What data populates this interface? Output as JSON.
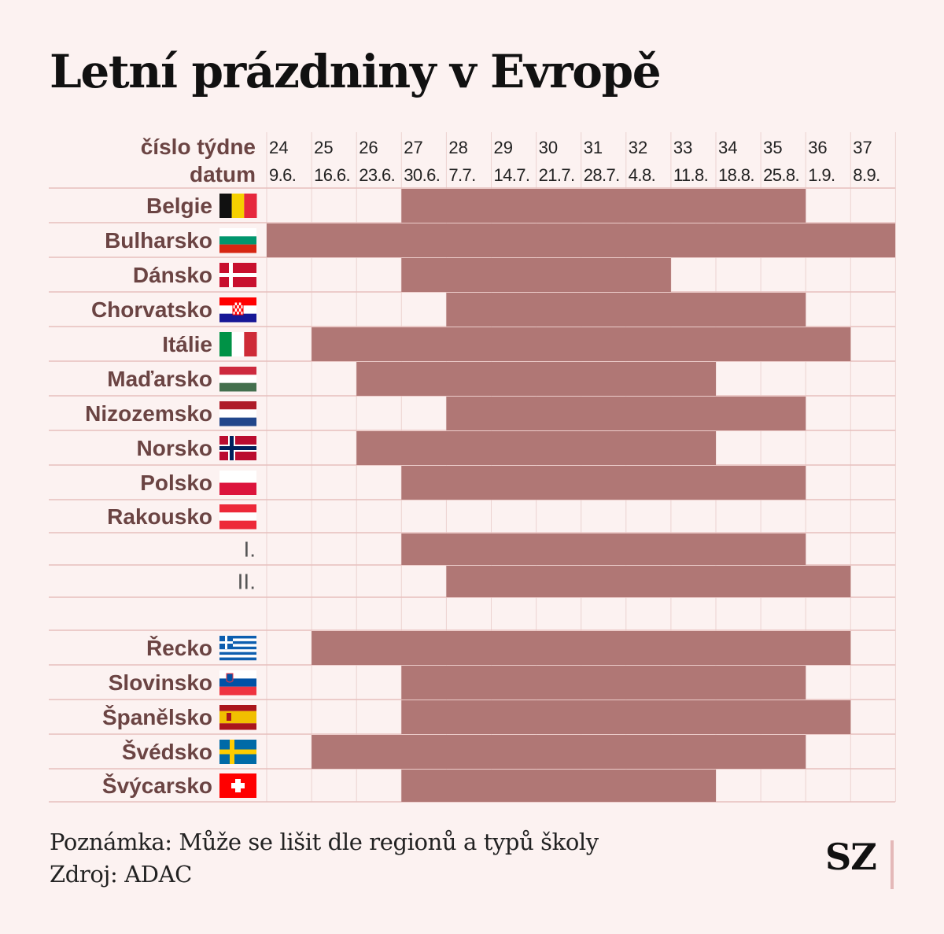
{
  "title": "Letní prázdniny v Evropě",
  "colors": {
    "background": "#fcf2f1",
    "bar": "#b07775",
    "label": "#6b4443",
    "grid": "#ecd3d1",
    "row_line": "#e7c0be"
  },
  "header": {
    "week_label": "číslo týdne",
    "date_label": "datum"
  },
  "chart_data": {
    "type": "gantt",
    "x_unit": "week",
    "weeks": [
      "24",
      "25",
      "26",
      "27",
      "28",
      "29",
      "30",
      "31",
      "32",
      "33",
      "34",
      "35",
      "36",
      "37"
    ],
    "dates": [
      "9.6.",
      "16.6.",
      "23.6.",
      "30.6.",
      "7.7.",
      "14.7.",
      "21.7.",
      "28.7.",
      "4.8.",
      "11.8.",
      "18.8.",
      "25.8.",
      "1.9.",
      "8.9."
    ],
    "rows": [
      {
        "label": "Belgie",
        "flag": "be-flag",
        "start": 27,
        "end": 36
      },
      {
        "label": "Bulharsko",
        "flag": "bg-flag",
        "start": 24,
        "end": 38
      },
      {
        "label": "Dánsko",
        "flag": "dk-flag",
        "start": 27,
        "end": 33
      },
      {
        "label": "Chorvatsko",
        "flag": "hr-flag",
        "start": 28,
        "end": 36
      },
      {
        "label": "Itálie",
        "flag": "it-flag",
        "start": 25,
        "end": 37
      },
      {
        "label": "Maďarsko",
        "flag": "hu-flag",
        "start": 26,
        "end": 34
      },
      {
        "label": "Nizozemsko",
        "flag": "nl-flag",
        "start": 28,
        "end": 36
      },
      {
        "label": "Norsko",
        "flag": "no-flag",
        "start": 26,
        "end": 34
      },
      {
        "label": "Polsko",
        "flag": "pl-flag",
        "start": 27,
        "end": 36
      },
      {
        "label": "Rakousko",
        "flag": "at-flag",
        "start": null,
        "end": null
      },
      {
        "label": "I.",
        "flag": null,
        "start": 27,
        "end": 36
      },
      {
        "label": "II.",
        "flag": null,
        "start": 28,
        "end": 37
      },
      {
        "label": "",
        "flag": null,
        "start": null,
        "end": null
      },
      {
        "label": "Řecko",
        "flag": "gr-flag",
        "start": 25,
        "end": 37
      },
      {
        "label": "Slovinsko",
        "flag": "si-flag",
        "start": 27,
        "end": 36
      },
      {
        "label": "Španělsko",
        "flag": "es-flag",
        "start": 27,
        "end": 37
      },
      {
        "label": "Švédsko",
        "flag": "se-flag",
        "start": 25,
        "end": 36
      },
      {
        "label": "Švýcarsko",
        "flag": "ch-flag",
        "start": 27,
        "end": 34
      }
    ]
  },
  "footer": {
    "note": "Poznámka: Může se lišit dle regionů a typů školy",
    "source": "Zdroj:  ADAC"
  },
  "logo": "SZ"
}
